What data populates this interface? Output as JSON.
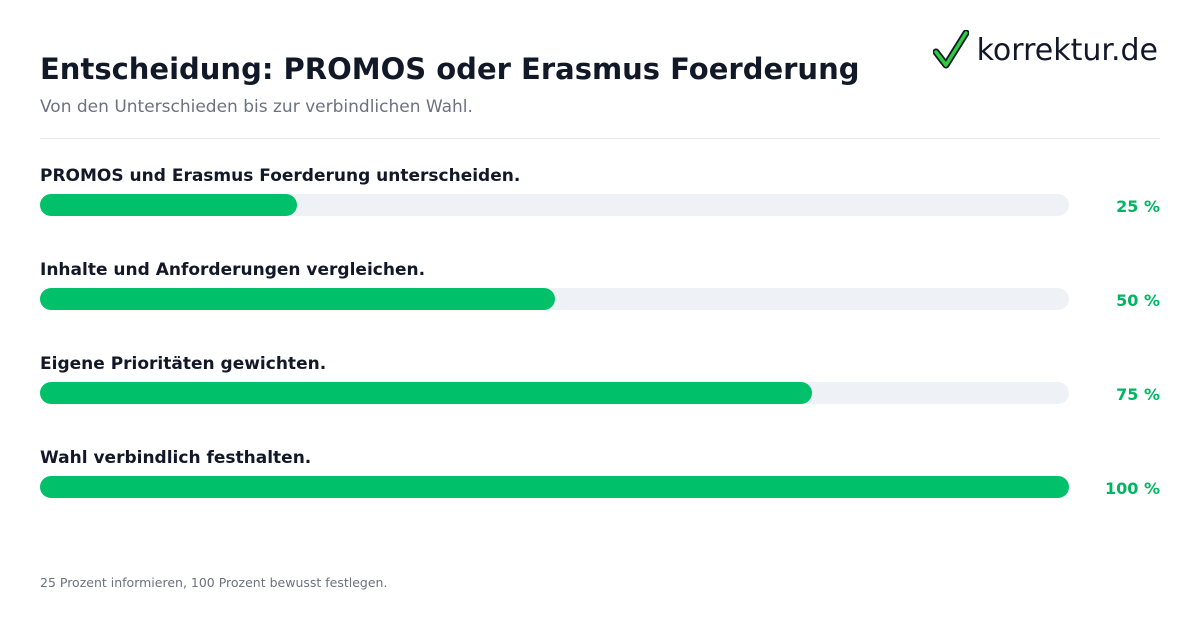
{
  "header": {
    "title": "Entscheidung: PROMOS oder Erasmus Foerderung",
    "subtitle": "Von den Unterschieden bis zur verbindlichen Wahl."
  },
  "logo": {
    "text": "korrektur.de",
    "icon": "checkmark-icon",
    "check_color": "#2ecc40"
  },
  "colors": {
    "bar_fill": "#00c16a",
    "bar_track": "#eef2f7",
    "percent_text": "#00b562"
  },
  "chart_data": {
    "type": "bar",
    "orientation": "horizontal",
    "categories": [
      "PROMOS und Erasmus Foerderung unterscheiden.",
      "Inhalte und Anforderungen vergleichen.",
      "Eigene Prioritäten gewichten.",
      "Wahl verbindlich festhalten."
    ],
    "values": [
      25,
      50,
      75,
      100
    ],
    "value_labels": [
      "25 %",
      "50 %",
      "75 %",
      "100 %"
    ],
    "xlim": [
      0,
      100
    ],
    "grid": false
  },
  "footer": {
    "note": "25 Prozent informieren, 100 Prozent bewusst festlegen."
  }
}
